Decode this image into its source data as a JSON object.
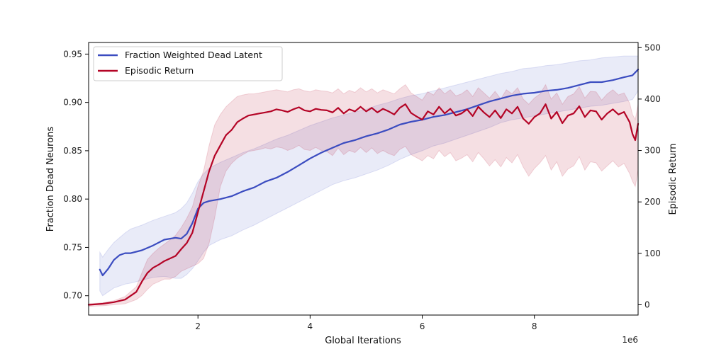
{
  "chart_data": {
    "type": "line",
    "xlabel": "Global Iterations",
    "x_multiplier_label": "1e6",
    "ylabel_left": "Fraction Dead Neurons",
    "ylabel_right": "Episodic Return",
    "xlim": [
      0.05,
      9.85
    ],
    "ylim_left": [
      0.68,
      0.962
    ],
    "ylim_right": [
      -20,
      510
    ],
    "xticks": [
      2,
      4,
      6,
      8
    ],
    "yticks_left": [
      0.7,
      0.75,
      0.8,
      0.85,
      0.9,
      0.95
    ],
    "yticks_right": [
      0,
      100,
      200,
      300,
      400,
      500
    ],
    "legend_position": "upper-left",
    "series": [
      {
        "name": "Fraction Weighted Dead Latent",
        "axis": "left",
        "color": "#3b4cc0",
        "band_color": "#3b4cc0",
        "x": [
          0.25,
          0.3,
          0.4,
          0.5,
          0.6,
          0.7,
          0.8,
          1.0,
          1.2,
          1.4,
          1.6,
          1.7,
          1.8,
          1.9,
          2.0,
          2.1,
          2.2,
          2.4,
          2.6,
          2.8,
          3.0,
          3.2,
          3.4,
          3.6,
          3.8,
          4.0,
          4.2,
          4.4,
          4.6,
          4.8,
          5.0,
          5.2,
          5.4,
          5.6,
          5.8,
          6.0,
          6.2,
          6.4,
          6.6,
          6.8,
          7.0,
          7.2,
          7.4,
          7.6,
          7.8,
          8.0,
          8.2,
          8.4,
          8.6,
          8.8,
          9.0,
          9.2,
          9.4,
          9.6,
          9.75,
          9.85
        ],
        "values": [
          0.727,
          0.721,
          0.728,
          0.737,
          0.742,
          0.744,
          0.744,
          0.747,
          0.752,
          0.758,
          0.76,
          0.759,
          0.764,
          0.775,
          0.79,
          0.796,
          0.798,
          0.8,
          0.803,
          0.808,
          0.812,
          0.818,
          0.822,
          0.828,
          0.835,
          0.842,
          0.848,
          0.853,
          0.858,
          0.861,
          0.865,
          0.868,
          0.872,
          0.877,
          0.88,
          0.882,
          0.885,
          0.887,
          0.89,
          0.893,
          0.897,
          0.901,
          0.904,
          0.907,
          0.909,
          0.91,
          0.912,
          0.913,
          0.915,
          0.918,
          0.921,
          0.921,
          0.923,
          0.926,
          0.928,
          0.934
        ],
        "lower": [
          0.705,
          0.7,
          0.704,
          0.708,
          0.71,
          0.712,
          0.713,
          0.716,
          0.719,
          0.72,
          0.718,
          0.718,
          0.722,
          0.728,
          0.736,
          0.745,
          0.752,
          0.758,
          0.762,
          0.768,
          0.773,
          0.779,
          0.785,
          0.791,
          0.797,
          0.803,
          0.809,
          0.815,
          0.819,
          0.822,
          0.826,
          0.83,
          0.835,
          0.841,
          0.846,
          0.85,
          0.855,
          0.858,
          0.862,
          0.866,
          0.87,
          0.874,
          0.879,
          0.882,
          0.884,
          0.886,
          0.888,
          0.89,
          0.892,
          0.894,
          0.896,
          0.897,
          0.899,
          0.901,
          0.903,
          0.912
        ],
        "upper": [
          0.745,
          0.74,
          0.748,
          0.755,
          0.76,
          0.765,
          0.769,
          0.773,
          0.778,
          0.782,
          0.786,
          0.79,
          0.796,
          0.806,
          0.818,
          0.826,
          0.832,
          0.838,
          0.843,
          0.848,
          0.852,
          0.857,
          0.862,
          0.866,
          0.871,
          0.876,
          0.88,
          0.884,
          0.887,
          0.89,
          0.893,
          0.897,
          0.9,
          0.904,
          0.907,
          0.909,
          0.912,
          0.915,
          0.918,
          0.921,
          0.924,
          0.927,
          0.93,
          0.932,
          0.935,
          0.936,
          0.938,
          0.939,
          0.941,
          0.943,
          0.944,
          0.946,
          0.947,
          0.948,
          0.948,
          0.948
        ]
      },
      {
        "name": "Episodic Return",
        "axis": "right",
        "color": "#b40426",
        "band_color": "#b40426",
        "x": [
          0.0,
          0.3,
          0.5,
          0.7,
          0.9,
          1.0,
          1.1,
          1.2,
          1.3,
          1.4,
          1.5,
          1.6,
          1.7,
          1.8,
          1.9,
          2.0,
          2.1,
          2.2,
          2.3,
          2.4,
          2.5,
          2.6,
          2.7,
          2.8,
          2.9,
          3.0,
          3.1,
          3.2,
          3.3,
          3.4,
          3.5,
          3.6,
          3.7,
          3.8,
          3.9,
          4.0,
          4.1,
          4.2,
          4.3,
          4.4,
          4.5,
          4.6,
          4.7,
          4.8,
          4.9,
          5.0,
          5.1,
          5.2,
          5.3,
          5.4,
          5.5,
          5.6,
          5.7,
          5.8,
          5.9,
          6.0,
          6.1,
          6.2,
          6.3,
          6.4,
          6.5,
          6.6,
          6.7,
          6.8,
          6.9,
          7.0,
          7.1,
          7.2,
          7.3,
          7.4,
          7.5,
          7.6,
          7.7,
          7.8,
          7.9,
          8.0,
          8.1,
          8.2,
          8.3,
          8.4,
          8.5,
          8.6,
          8.7,
          8.8,
          8.9,
          9.0,
          9.1,
          9.2,
          9.3,
          9.4,
          9.5,
          9.6,
          9.7,
          9.75,
          9.8,
          9.85
        ],
        "values": [
          0,
          2,
          5,
          10,
          25,
          45,
          62,
          72,
          78,
          85,
          90,
          95,
          108,
          120,
          140,
          180,
          220,
          260,
          290,
          310,
          330,
          340,
          355,
          362,
          368,
          370,
          372,
          374,
          376,
          380,
          378,
          375,
          380,
          384,
          378,
          376,
          381,
          379,
          378,
          374,
          383,
          372,
          380,
          376,
          385,
          376,
          383,
          374,
          381,
          376,
          370,
          383,
          390,
          373,
          366,
          360,
          376,
          370,
          385,
          372,
          381,
          368,
          372,
          380,
          367,
          385,
          374,
          365,
          378,
          363,
          380,
          372,
          385,
          362,
          352,
          365,
          372,
          390,
          362,
          375,
          353,
          368,
          372,
          386,
          365,
          378,
          376,
          360,
          372,
          380,
          370,
          375,
          355,
          332,
          320,
          352
        ],
        "lower": [
          -3,
          -2,
          0,
          2,
          10,
          18,
          30,
          40,
          45,
          50,
          50,
          55,
          65,
          70,
          75,
          80,
          90,
          120,
          170,
          230,
          260,
          275,
          285,
          292,
          298,
          300,
          302,
          305,
          303,
          307,
          305,
          300,
          304,
          310,
          302,
          300,
          306,
          300,
          298,
          290,
          305,
          292,
          300,
          296,
          306,
          296,
          305,
          294,
          300,
          294,
          290,
          302,
          308,
          292,
          286,
          280,
          290,
          284,
          300,
          288,
          296,
          280,
          285,
          292,
          278,
          296,
          284,
          270,
          282,
          268,
          286,
          276,
          292,
          268,
          250,
          265,
          276,
          290,
          262,
          278,
          250,
          264,
          270,
          288,
          262,
          278,
          276,
          260,
          270,
          280,
          268,
          275,
          255,
          240,
          230,
          262
        ],
        "upper": [
          2,
          4,
          8,
          16,
          35,
          62,
          88,
          100,
          110,
          118,
          126,
          135,
          150,
          168,
          190,
          230,
          260,
          310,
          350,
          370,
          385,
          395,
          405,
          408,
          410,
          410,
          412,
          414,
          416,
          418,
          416,
          414,
          418,
          420,
          416,
          414,
          418,
          416,
          415,
          412,
          420,
          410,
          417,
          413,
          422,
          414,
          420,
          412,
          418,
          414,
          410,
          420,
          428,
          412,
          405,
          398,
          414,
          408,
          422,
          410,
          418,
          406,
          410,
          418,
          405,
          422,
          412,
          402,
          415,
          400,
          418,
          410,
          422,
          400,
          390,
          402,
          410,
          428,
          400,
          412,
          390,
          405,
          410,
          424,
          402,
          415,
          414,
          398,
          410,
          418,
          408,
          412,
          392,
          370,
          360,
          390
        ]
      }
    ]
  }
}
